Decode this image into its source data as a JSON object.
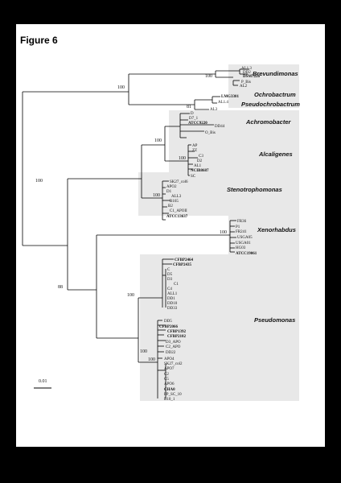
{
  "figure": {
    "title": "Figure 6"
  },
  "genera": [
    "Brevundimonas",
    "Ochrobactrum",
    "Pseudochrobactrum",
    "Achromobacter",
    "Alcaligenes",
    "Stenotrophomonas",
    "Xenorhabdus",
    "Pseudomonas"
  ],
  "bootstrap": [
    "100",
    "81",
    "100",
    "100",
    "100",
    "100",
    "100",
    "88",
    "100",
    "100",
    "100",
    "100"
  ],
  "leaves": {
    "brev": [
      "AL1.3",
      "DD2",
      "DSM7226",
      "P_Bis",
      "AL2"
    ],
    "ochro": [
      "LMG3301",
      "AL1.4",
      "AL3"
    ],
    "achro": [
      "D",
      "D7_1",
      "ATCC9220",
      "DD44",
      "O_Bis"
    ],
    "alca": [
      "AP",
      "ZZ",
      "C3",
      "D2",
      "AL1",
      "NCIB8687",
      "SC"
    ],
    "steno": [
      "SK27_col6",
      "APO2",
      "D1",
      "ALL3",
      "B165",
      "B2",
      "C1_APOII",
      "ATCC13637"
    ],
    "xeno": [
      "FR36",
      "P1",
      "FR241",
      "USGA05",
      "USGA01",
      "HG03",
      "ATCC19061"
    ],
    "pseudo": [
      "CFBP2464",
      "CFBP2435",
      "C",
      "D5",
      "D3",
      "C1",
      "C4",
      "ALL1",
      "DD1",
      "DD10",
      "DD33",
      "DD5",
      "CFBP2066",
      "CFBP1392",
      "CFBP2102",
      "D3_APO",
      "C2_APO",
      "DD22",
      "APO4",
      "SK27_col2",
      "APO7",
      "C2",
      "C5",
      "APO6",
      "CHA0",
      "PP_SC_10",
      "B10_1"
    ]
  },
  "scale_bar": "0.01"
}
